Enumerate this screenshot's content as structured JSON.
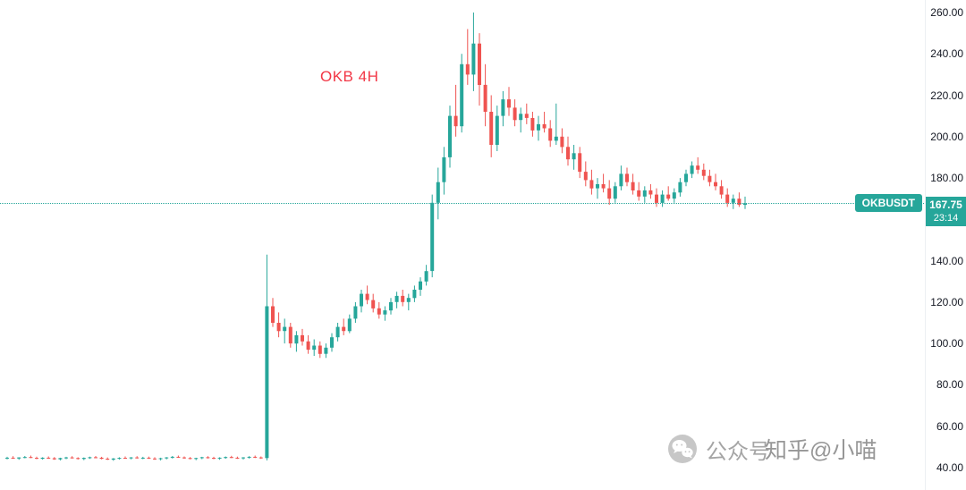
{
  "chart_data": {
    "type": "candlestick",
    "title": "OKB 4H",
    "symbol": "OKB",
    "interval": "4H",
    "ticker": "OKBUSDT",
    "last_price": "167.75",
    "countdown": "23:14",
    "up_color": "#26a69a",
    "down_color": "#ef5350",
    "label_bg": "#26a69a",
    "title_color": "#f23645",
    "axis_text_color": "#131722",
    "y_ticks": [
      "260.00",
      "240.00",
      "220.00",
      "200.00",
      "180.00",
      "140.00",
      "120.00",
      "100.00",
      "80.00",
      "60.00",
      "40.00"
    ],
    "y_range": [
      40,
      260
    ],
    "grid": false,
    "candles": [
      [
        44.5,
        45.2,
        44.0,
        44.8
      ],
      [
        44.8,
        45.5,
        44.3,
        44.4
      ],
      [
        44.4,
        45.0,
        43.8,
        44.9
      ],
      [
        44.9,
        45.6,
        44.5,
        45.1
      ],
      [
        45.1,
        45.8,
        44.6,
        44.7
      ],
      [
        44.7,
        45.3,
        44.1,
        44.3
      ],
      [
        44.3,
        45.0,
        43.9,
        44.8
      ],
      [
        44.8,
        45.4,
        44.2,
        44.5
      ],
      [
        44.5,
        45.1,
        43.8,
        44.0
      ],
      [
        44.0,
        44.8,
        43.5,
        44.6
      ],
      [
        44.6,
        45.2,
        44.1,
        44.9
      ],
      [
        44.9,
        45.5,
        44.4,
        44.6
      ],
      [
        44.6,
        45.0,
        43.9,
        44.2
      ],
      [
        44.2,
        44.9,
        43.6,
        44.7
      ],
      [
        44.7,
        45.3,
        44.2,
        45.0
      ],
      [
        45.0,
        45.6,
        44.5,
        44.8
      ],
      [
        44.8,
        45.2,
        44.0,
        44.3
      ],
      [
        44.3,
        44.9,
        43.7,
        43.9
      ],
      [
        43.9,
        44.6,
        43.3,
        44.4
      ],
      [
        44.4,
        45.0,
        43.9,
        44.7
      ],
      [
        44.7,
        45.4,
        44.3,
        44.5
      ],
      [
        44.5,
        45.1,
        44.0,
        44.9
      ],
      [
        44.9,
        45.5,
        44.4,
        44.6
      ],
      [
        44.6,
        45.2,
        44.1,
        44.8
      ],
      [
        44.8,
        45.3,
        44.2,
        44.4
      ],
      [
        44.4,
        45.0,
        43.8,
        44.1
      ],
      [
        44.1,
        44.8,
        43.5,
        44.5
      ],
      [
        44.5,
        45.1,
        44.0,
        44.9
      ],
      [
        44.9,
        45.6,
        44.4,
        45.2
      ],
      [
        45.2,
        45.8,
        44.7,
        44.9
      ],
      [
        44.9,
        45.4,
        44.3,
        44.6
      ],
      [
        44.6,
        45.1,
        44.0,
        44.2
      ],
      [
        44.2,
        44.8,
        43.6,
        44.6
      ],
      [
        44.6,
        45.2,
        44.1,
        45.0
      ],
      [
        45.0,
        45.5,
        44.4,
        44.7
      ],
      [
        44.7,
        45.2,
        44.1,
        44.4
      ],
      [
        44.4,
        45.0,
        43.8,
        44.8
      ],
      [
        44.8,
        45.4,
        44.3,
        45.1
      ],
      [
        45.1,
        45.7,
        44.6,
        44.8
      ],
      [
        44.8,
        45.3,
        44.2,
        44.5
      ],
      [
        44.5,
        45.1,
        43.9,
        44.9
      ],
      [
        44.9,
        45.5,
        44.4,
        45.2
      ],
      [
        45.2,
        45.8,
        44.6,
        44.9
      ],
      [
        44.9,
        45.4,
        44.2,
        44.6
      ],
      [
        44.6,
        143.0,
        43.5,
        118.0
      ],
      [
        118,
        122,
        108,
        110
      ],
      [
        110,
        115,
        103,
        106
      ],
      [
        106,
        112,
        100,
        108
      ],
      [
        108,
        110,
        98,
        100
      ],
      [
        100,
        106,
        96,
        104
      ],
      [
        104,
        107,
        99,
        101
      ],
      [
        101,
        104,
        95,
        97
      ],
      [
        97,
        102,
        94,
        99
      ],
      [
        99,
        101,
        93,
        95
      ],
      [
        95,
        100,
        93,
        98
      ],
      [
        98,
        105,
        96,
        103
      ],
      [
        103,
        110,
        101,
        108
      ],
      [
        108,
        112,
        104,
        106
      ],
      [
        106,
        114,
        105,
        112
      ],
      [
        112,
        120,
        110,
        118
      ],
      [
        118,
        126,
        115,
        124
      ],
      [
        124,
        128,
        119,
        121
      ],
      [
        121,
        124,
        115,
        117
      ],
      [
        117,
        120,
        112,
        114
      ],
      [
        114,
        118,
        111,
        116
      ],
      [
        116,
        122,
        114,
        120
      ],
      [
        120,
        125,
        117,
        123
      ],
      [
        123,
        126,
        118,
        120
      ],
      [
        120,
        124,
        116,
        122
      ],
      [
        122,
        128,
        120,
        126
      ],
      [
        126,
        132,
        123,
        130
      ],
      [
        130,
        138,
        128,
        135
      ],
      [
        135,
        172,
        132,
        168
      ],
      [
        168,
        185,
        160,
        178
      ],
      [
        178,
        195,
        172,
        190
      ],
      [
        190,
        215,
        185,
        210
      ],
      [
        210,
        225,
        200,
        205
      ],
      [
        205,
        240,
        202,
        235
      ],
      [
        235,
        252,
        225,
        230
      ],
      [
        230,
        260,
        222,
        245
      ],
      [
        245,
        250,
        215,
        225
      ],
      [
        225,
        235,
        205,
        212
      ],
      [
        212,
        220,
        190,
        196
      ],
      [
        196,
        215,
        193,
        210
      ],
      [
        210,
        222,
        205,
        218
      ],
      [
        218,
        224,
        210,
        214
      ],
      [
        214,
        218,
        205,
        208
      ],
      [
        208,
        214,
        202,
        211
      ],
      [
        211,
        216,
        206,
        209
      ],
      [
        209,
        212,
        200,
        203
      ],
      [
        203,
        210,
        198,
        206
      ],
      [
        206,
        212,
        202,
        204
      ],
      [
        204,
        208,
        195,
        198
      ],
      [
        198,
        216,
        196,
        200
      ],
      [
        200,
        204,
        192,
        195
      ],
      [
        195,
        200,
        186,
        189
      ],
      [
        189,
        196,
        184,
        192
      ],
      [
        192,
        195,
        180,
        183
      ],
      [
        183,
        188,
        176,
        179
      ],
      [
        179,
        184,
        172,
        175
      ],
      [
        175,
        180,
        170,
        177
      ],
      [
        177,
        182,
        173,
        175
      ],
      [
        175,
        179,
        167,
        170
      ],
      [
        170,
        178,
        168,
        176
      ],
      [
        176,
        186,
        174,
        182
      ],
      [
        182,
        185,
        176,
        178
      ],
      [
        178,
        182,
        172,
        174
      ],
      [
        174,
        178,
        169,
        171
      ],
      [
        171,
        176,
        168,
        174
      ],
      [
        174,
        177,
        170,
        172
      ],
      [
        172,
        175,
        166,
        168
      ],
      [
        168,
        174,
        166,
        172
      ],
      [
        172,
        176,
        169,
        170
      ],
      [
        170,
        175,
        168,
        173
      ],
      [
        173,
        180,
        171,
        178
      ],
      [
        178,
        184,
        176,
        182
      ],
      [
        182,
        188,
        180,
        186
      ],
      [
        186,
        190,
        182,
        184
      ],
      [
        184,
        187,
        179,
        181
      ],
      [
        181,
        184,
        176,
        178
      ],
      [
        178,
        182,
        174,
        176
      ],
      [
        176,
        179,
        170,
        172
      ],
      [
        172,
        175,
        166,
        168
      ],
      [
        168,
        172,
        165,
        170
      ],
      [
        170,
        173,
        166,
        167
      ],
      [
        167,
        171,
        165,
        167.75
      ]
    ]
  },
  "watermark": {
    "text1": "公众号",
    "text2": "知乎@小喵"
  }
}
